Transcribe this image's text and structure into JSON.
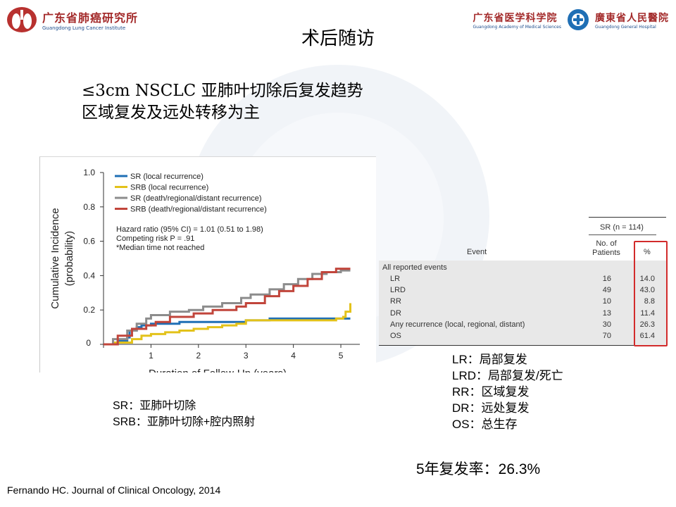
{
  "header": {
    "left_logo_cn": "广东省肺癌研究所",
    "left_logo_en": "Guangdong Lung Cancer Institute",
    "right_logo1_cn": "广东省医学科学院",
    "right_logo1_en": "Guangdong Academy of Medical Sciences",
    "right_logo2_cn": "廣東省人民醫院",
    "right_logo2_en": "Guangdong General Hospital"
  },
  "title": "术后随访",
  "subtitle_line1": "≤3cm NSCLC 亚肺叶切除后复发趋势",
  "subtitle_line2": "区域复发及远处转移为主",
  "colors": {
    "SR_local": "#1f6fb5",
    "SRB_local": "#e3c21a",
    "SR_death": "#8c8c8c",
    "SRB_death": "#c1453b",
    "highlight": "#d22b2b"
  },
  "chart_data": {
    "type": "line",
    "xlabel": "Duration of Follow-Up (years)",
    "ylabel_line1": "Cumulative Incidence",
    "ylabel_line2": "(probability)",
    "xlim": [
      0,
      5.4
    ],
    "ylim": [
      0,
      1.0
    ],
    "xticks": [
      "0",
      "1",
      "2",
      "3",
      "4",
      "5"
    ],
    "yticks": [
      "0",
      "0.2",
      "0.4",
      "0.6",
      "0.8",
      "1.0"
    ],
    "legend_position": "top-left",
    "annotation_line1": "Hazard ratio (95% CI) = 1.01 (0.51 to 1.98)",
    "annotation_line2": "Competing risk P = .91",
    "annotation_line3": "*Median time not reached",
    "series": [
      {
        "name": "SR (local recurrence)",
        "color": "#1f6fb5",
        "x": [
          0.0,
          0.3,
          0.5,
          0.55,
          0.7,
          0.8,
          1.0,
          1.3,
          1.6,
          2.0,
          2.5,
          3.0,
          3.5,
          4.0,
          4.6,
          5.0,
          5.2
        ],
        "y": [
          0.0,
          0.02,
          0.04,
          0.08,
          0.1,
          0.11,
          0.12,
          0.12,
          0.13,
          0.13,
          0.13,
          0.14,
          0.15,
          0.15,
          0.15,
          0.15,
          0.15
        ]
      },
      {
        "name": "SRB (local recurrence)",
        "color": "#e3c21a",
        "x": [
          0.0,
          0.2,
          0.6,
          0.8,
          1.0,
          1.3,
          1.6,
          1.9,
          2.2,
          2.5,
          2.8,
          3.0,
          3.5,
          4.0,
          4.5,
          4.9,
          5.05,
          5.1,
          5.2
        ],
        "y": [
          0.0,
          0.01,
          0.03,
          0.05,
          0.06,
          0.07,
          0.08,
          0.09,
          0.1,
          0.11,
          0.12,
          0.14,
          0.14,
          0.14,
          0.14,
          0.15,
          0.16,
          0.19,
          0.24
        ]
      },
      {
        "name": "SR (death/regional/distant recurrence)",
        "color": "#8c8c8c",
        "x": [
          0.0,
          0.2,
          0.5,
          0.7,
          0.9,
          1.0,
          1.4,
          1.8,
          2.1,
          2.5,
          2.9,
          3.1,
          3.5,
          3.8,
          4.1,
          4.4,
          4.7,
          5.0,
          5.2
        ],
        "y": [
          0.0,
          0.03,
          0.08,
          0.12,
          0.15,
          0.17,
          0.19,
          0.2,
          0.22,
          0.24,
          0.27,
          0.29,
          0.32,
          0.35,
          0.38,
          0.41,
          0.42,
          0.43,
          0.43
        ]
      },
      {
        "name": "SRB (death/regional/distant recurrence)",
        "color": "#c1453b",
        "x": [
          0.0,
          0.3,
          0.6,
          0.9,
          1.1,
          1.4,
          1.9,
          2.3,
          2.8,
          3.0,
          3.4,
          3.7,
          4.0,
          4.3,
          4.6,
          4.9,
          5.2
        ],
        "y": [
          0.0,
          0.05,
          0.09,
          0.11,
          0.13,
          0.16,
          0.18,
          0.2,
          0.22,
          0.24,
          0.28,
          0.31,
          0.34,
          0.38,
          0.42,
          0.44,
          0.44
        ]
      }
    ]
  },
  "table": {
    "group_header": "SR (n = 114)",
    "col_event": "Event",
    "col_no_line1": "No. of",
    "col_no_line2": "Patients",
    "col_pct": "%",
    "section": "All reported events",
    "rows": [
      {
        "event": "LR",
        "n": "16",
        "pct": "14.0"
      },
      {
        "event": "LRD",
        "n": "49",
        "pct": "43.0"
      },
      {
        "event": "RR",
        "n": "10",
        "pct": "8.8"
      },
      {
        "event": "DR",
        "n": "13",
        "pct": "11.4"
      },
      {
        "event": "Any recurrence (local, regional, distant)",
        "n": "30",
        "pct": "26.3"
      },
      {
        "event": "OS",
        "n": "70",
        "pct": "61.4"
      }
    ]
  },
  "abbrev_right": [
    "LR：局部复发",
    "LRD：局部复发/死亡",
    "RR：区域复发",
    "DR：远处复发",
    "OS：总生存"
  ],
  "abbrev_left": [
    "SR：亚肺叶切除",
    "SRB：亚肺叶切除+腔内照射"
  ],
  "recurrence_rate": "5年复发率：26.3%",
  "citation": "Fernando HC. Journal of Clinical Oncology, 2014"
}
